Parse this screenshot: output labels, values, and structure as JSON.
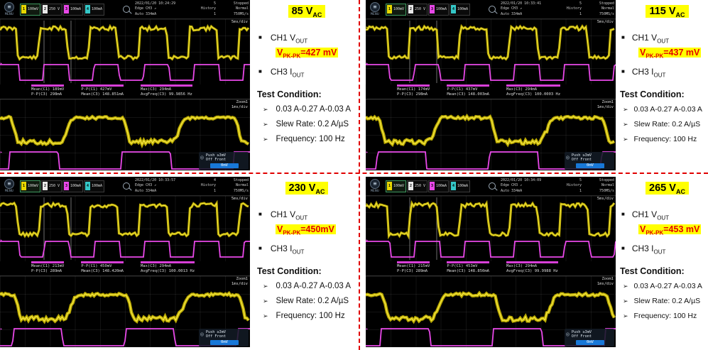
{
  "glyphs": {
    "square_bullet": "■",
    "arrow_bullet": "➢",
    "menu_icon": "≡",
    "knob_icon": "◎"
  },
  "colors": {
    "highlight_yellow": "#ffff00",
    "alert_red": "#e30000",
    "divider_red": "#e00000",
    "trace_yellow": "#b8a800",
    "trace_yellow_bright": "#f5e642",
    "trace_magenta": "#e848e8",
    "knob_bar_blue": "#1878d8",
    "scope_background": "#000000"
  },
  "scope_common": {
    "menu_label": "MENU",
    "channels": [
      {
        "num": "1",
        "value": "100mV"
      },
      {
        "num": "2",
        "value": "250 V"
      },
      {
        "num": "3",
        "value": "100mA"
      },
      {
        "num": "4",
        "value": "100mA"
      }
    ],
    "trigger_mode": "Edge CH3 ↗",
    "trigger_level": "Auto 334mA",
    "history_label": "History",
    "history_num": "1",
    "acq_mode": "Normal",
    "status": "Stopped",
    "sample_rate": "750MS/s",
    "timebase": "5ms/div",
    "zoom_label": "Zoom1",
    "zoom_timebase": "1ms/div",
    "push_label": "Push ≥3mV",
    "off_label": "Off Front",
    "knob_value": "0mV"
  },
  "bullet_labels": {
    "ch1": "CH1 V",
    "ch1_sub": "OUT",
    "ch3": "CH3 I",
    "ch3_sub": "OUT",
    "vpk_prefix": "V",
    "vpk_sub": "PK-PK"
  },
  "test_condition": {
    "heading": "Test Condition:",
    "items": [
      "0.03 A-0.27 A-0.03 A",
      "Slew Rate: 0.2 A/µS",
      "Frequency: 100 Hz"
    ]
  },
  "quadrants": [
    {
      "title_main": "85 V",
      "title_sub": "AC",
      "vpk_value": "=427 mV",
      "scope": {
        "timestamp": "2022/01/20 10:24:29",
        "acq_count": "5",
        "measurements": [
          {
            "l1": "Mean(C1) 189mV",
            "l2": "P-P(C3) 298mA"
          },
          {
            "l1": "P-P(C1) 427mV",
            "l2": "Mean(C3) 148.851mA"
          },
          {
            "l1": "Max(C3) 294mA",
            "l2": "AvgFreq(C3) 99.9856 Hz"
          }
        ]
      }
    },
    {
      "title_main": "115 V",
      "title_sub": "AC",
      "vpk_value": "=437 mV",
      "scope": {
        "timestamp": "2022/01/20 10:33:41",
        "acq_count": "5",
        "measurements": [
          {
            "l1": "Mean(C1) 174mV",
            "l2": "P-P(C3) 298mA"
          },
          {
            "l1": "P-P(C1) 437mV",
            "l2": "Mean(C3) 148.003mA"
          },
          {
            "l1": "Max(C3) 294mA",
            "l2": "AvgFreq(C3) 100.0003 Hz"
          }
        ]
      }
    },
    {
      "title_main": "230 V",
      "title_sub": "AC",
      "vpk_value": "=450mV",
      "scope": {
        "timestamp": "2022/01/20 10:33:57",
        "acq_count": "4",
        "measurements": [
          {
            "l1": "Mean(C1) 213mV",
            "l2": "P-P(C3) 289mA"
          },
          {
            "l1": "P-P(C1) 450mV",
            "l2": "Mean(C3) 148.420mA"
          },
          {
            "l1": "Max(C3) 294mA",
            "l2": "AvgFreq(C3) 100.0013 Hz"
          }
        ]
      }
    },
    {
      "title_main": "265 V",
      "title_sub": "AC",
      "vpk_value": "=453 mV",
      "scope": {
        "timestamp": "2022/01/20 10:34:09",
        "acq_count": "5",
        "measurements": [
          {
            "l1": "Mean(C1) 215mV",
            "l2": "P-P(C3) 289mA"
          },
          {
            "l1": "P-P(C1) 453mV",
            "l2": "Mean(C3) 148.850mA"
          },
          {
            "l1": "Max(C3) 294mA",
            "l2": "AvgFreq(C3) 99.9988 Hz"
          }
        ]
      }
    }
  ]
}
